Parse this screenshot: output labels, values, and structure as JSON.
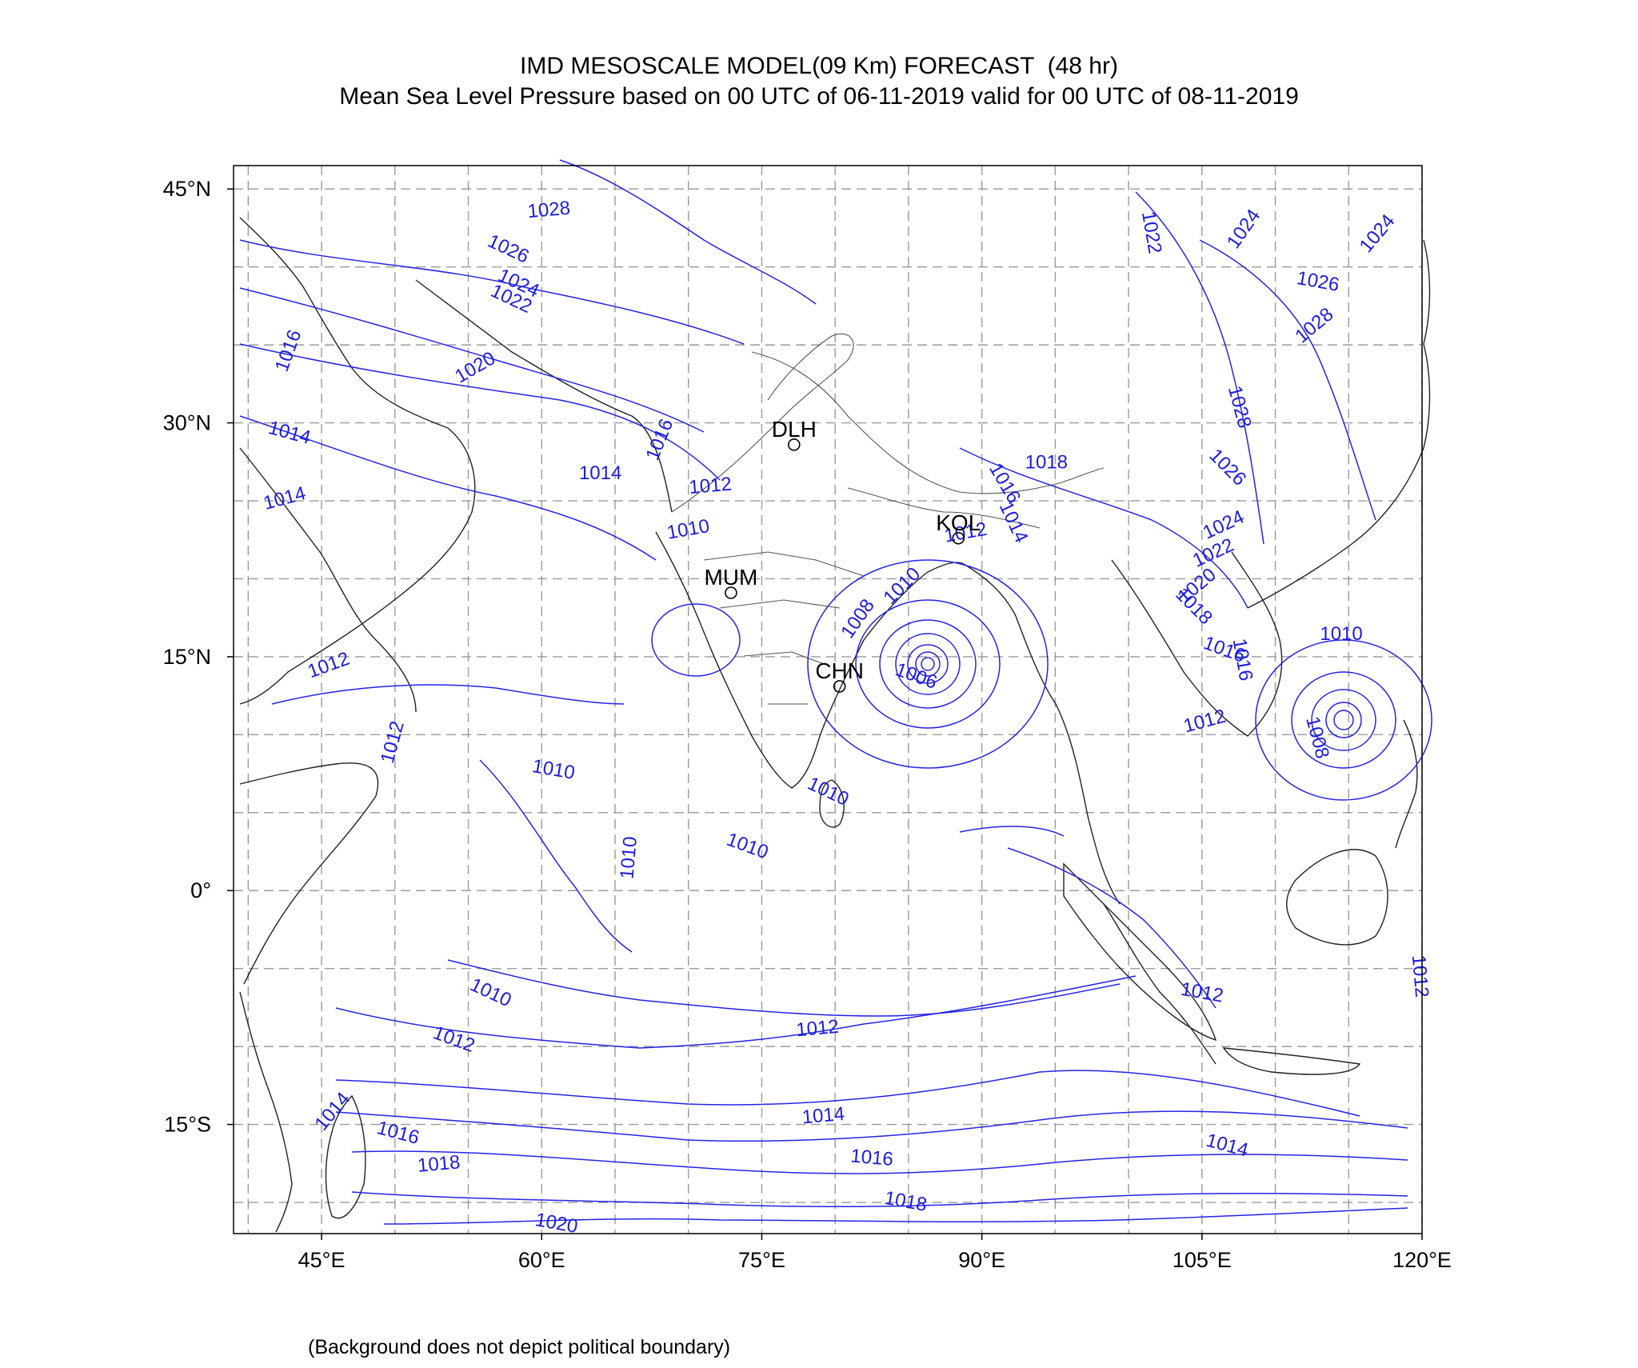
{
  "header": {
    "title": "IMD MESOSCALE MODEL(09 Km) FORECAST  (48 hr)",
    "subtitle": "Mean Sea Level Pressure based on 00 UTC of 06-11-2019 valid for 00 UTC of 08-11-2019"
  },
  "footnote": "(Background does not depict political boundary)",
  "colors": {
    "isobar": "#2424e8",
    "grid": "#9a9a9a",
    "coast": "#222222",
    "frame": "#000000"
  },
  "map": {
    "lon_range": [
      39,
      120
    ],
    "lat_range": [
      -22,
      46.5
    ],
    "lat_ticks": [
      {
        "value": 45,
        "label": "45°N"
      },
      {
        "value": 30,
        "label": "30°N"
      },
      {
        "value": 15,
        "label": "15°N"
      },
      {
        "value": 0,
        "label": "0°"
      },
      {
        "value": -15,
        "label": "15°S"
      }
    ],
    "lon_ticks": [
      {
        "value": 45,
        "label": "45°E"
      },
      {
        "value": 60,
        "label": "60°E"
      },
      {
        "value": 75,
        "label": "75°E"
      },
      {
        "value": 90,
        "label": "90°E"
      },
      {
        "value": 105,
        "label": "105°E"
      },
      {
        "value": 120,
        "label": "120°E"
      }
    ],
    "grid_lon_step": 5,
    "grid_lat_step": 5,
    "cities": [
      {
        "code": "DLH",
        "lon": 77.2,
        "lat": 28.6
      },
      {
        "code": "KOL",
        "lon": 88.4,
        "lat": 22.6
      },
      {
        "code": "MUM",
        "lon": 72.9,
        "lat": 19.1
      },
      {
        "code": "CHN",
        "lon": 80.3,
        "lat": 13.1
      }
    ],
    "isobar_labels": [
      {
        "text": "1028",
        "lon": 60.5,
        "lat": 43.6,
        "rot": -5
      },
      {
        "text": "1026",
        "lon": 57.7,
        "lat": 41.1,
        "rot": 25
      },
      {
        "text": "1024",
        "lon": 58.4,
        "lat": 38.9,
        "rot": 25
      },
      {
        "text": "1022",
        "lon": 57.9,
        "lat": 37.9,
        "rot": 25
      },
      {
        "text": "1016",
        "lon": 42.8,
        "lat": 34.6,
        "rot": -70
      },
      {
        "text": "1020",
        "lon": 55.5,
        "lat": 33.5,
        "rot": -30
      },
      {
        "text": "1014",
        "lon": 42.8,
        "lat": 29.3,
        "rot": 15
      },
      {
        "text": "1014",
        "lon": 42.5,
        "lat": 25.1,
        "rot": -15
      },
      {
        "text": "1016",
        "lon": 68.1,
        "lat": 28.9,
        "rot": -68
      },
      {
        "text": "1014",
        "lon": 64.0,
        "lat": 26.7,
        "rot": 0
      },
      {
        "text": "1012",
        "lon": 71.5,
        "lat": 25.9,
        "rot": -5
      },
      {
        "text": "1010",
        "lon": 70.0,
        "lat": 23.1,
        "rot": -10
      },
      {
        "text": "1018",
        "lon": 94.4,
        "lat": 27.4,
        "rot": 0
      },
      {
        "text": "1016",
        "lon": 91.5,
        "lat": 26.1,
        "rot": 60
      },
      {
        "text": "1014",
        "lon": 92.1,
        "lat": 23.6,
        "rot": 65
      },
      {
        "text": "1012",
        "lon": 88.9,
        "lat": 22.9,
        "rot": -10
      },
      {
        "text": "1010",
        "lon": 84.6,
        "lat": 19.5,
        "rot": -45
      },
      {
        "text": "1008",
        "lon": 81.6,
        "lat": 17.4,
        "rot": -55
      },
      {
        "text": "1006",
        "lon": 85.5,
        "lat": 13.7,
        "rot": 20
      },
      {
        "text": "1012",
        "lon": 45.5,
        "lat": 14.4,
        "rot": -20
      },
      {
        "text": "1012",
        "lon": 49.9,
        "lat": 9.5,
        "rot": -75
      },
      {
        "text": "1010",
        "lon": 60.8,
        "lat": 7.7,
        "rot": 10
      },
      {
        "text": "1010",
        "lon": 79.5,
        "lat": 6.3,
        "rot": 25
      },
      {
        "text": "1010",
        "lon": 74.0,
        "lat": 2.8,
        "rot": 20
      },
      {
        "text": "1010",
        "lon": 66.0,
        "lat": 2.1,
        "rot": -85
      },
      {
        "text": "1010",
        "lon": 56.5,
        "lat": -6.6,
        "rot": 25
      },
      {
        "text": "1012",
        "lon": 54.0,
        "lat": -9.6,
        "rot": 20
      },
      {
        "text": "1012",
        "lon": 78.8,
        "lat": -8.9,
        "rot": -5
      },
      {
        "text": "1014",
        "lon": 79.2,
        "lat": -14.5,
        "rot": -5
      },
      {
        "text": "1014",
        "lon": 45.8,
        "lat": -14.2,
        "rot": -50
      },
      {
        "text": "1016",
        "lon": 50.2,
        "lat": -15.6,
        "rot": 15
      },
      {
        "text": "1016",
        "lon": 82.5,
        "lat": -17.2,
        "rot": 5
      },
      {
        "text": "1018",
        "lon": 53.0,
        "lat": -17.6,
        "rot": -5
      },
      {
        "text": "1018",
        "lon": 84.8,
        "lat": -20.0,
        "rot": 10
      },
      {
        "text": "1020",
        "lon": 61.0,
        "lat": -21.4,
        "rot": 10
      },
      {
        "text": "1014",
        "lon": 106.7,
        "lat": -16.4,
        "rot": 15
      },
      {
        "text": "1012",
        "lon": 105.0,
        "lat": -6.6,
        "rot": 10
      },
      {
        "text": "1022",
        "lon": 101.5,
        "lat": 42.2,
        "rot": 80
      },
      {
        "text": "1024",
        "lon": 107.9,
        "lat": 42.4,
        "rot": -55
      },
      {
        "text": "1024",
        "lon": 117.0,
        "lat": 42.1,
        "rot": -50
      },
      {
        "text": "1026",
        "lon": 112.9,
        "lat": 39.0,
        "rot": 10
      },
      {
        "text": "1028",
        "lon": 112.7,
        "lat": 36.2,
        "rot": -40
      },
      {
        "text": "1028",
        "lon": 107.5,
        "lat": 31.0,
        "rot": 75
      },
      {
        "text": "1026",
        "lon": 106.7,
        "lat": 27.1,
        "rot": 45
      },
      {
        "text": "1024",
        "lon": 106.5,
        "lat": 23.4,
        "rot": -25
      },
      {
        "text": "1022",
        "lon": 105.8,
        "lat": 21.6,
        "rot": -25
      },
      {
        "text": "1020",
        "lon": 104.7,
        "lat": 19.5,
        "rot": -40
      },
      {
        "text": "1018",
        "lon": 104.4,
        "lat": 18.2,
        "rot": 45
      },
      {
        "text": "1016",
        "lon": 106.5,
        "lat": 15.4,
        "rot": 20
      },
      {
        "text": "1016",
        "lon": 107.7,
        "lat": 14.8,
        "rot": 80
      },
      {
        "text": "1012",
        "lon": 105.2,
        "lat": 10.8,
        "rot": -15
      },
      {
        "text": "1010",
        "lon": 114.5,
        "lat": 16.4,
        "rot": 0
      },
      {
        "text": "1008",
        "lon": 112.8,
        "lat": 9.8,
        "rot": 75
      },
      {
        "text": "1012",
        "lon": 119.8,
        "lat": -5.5,
        "rot": 85
      }
    ]
  }
}
